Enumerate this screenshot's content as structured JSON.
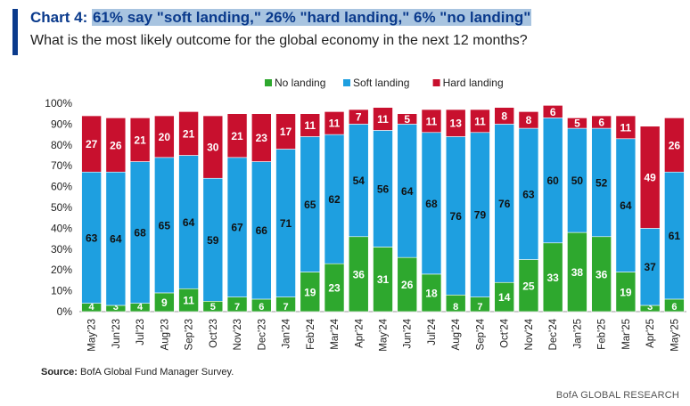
{
  "header": {
    "chart_label": "Chart 4:",
    "title_highlight": "61% say \"soft landing,\" 26% \"hard landing,\" 6% \"no landing\"",
    "subtitle": "What is the most likely outcome for the global economy in the next 12 months?"
  },
  "footer": {
    "source_label": "Source:",
    "source_text": " BofA Global Fund Manager Survey.",
    "brand": "BofA GLOBAL RESEARCH"
  },
  "colors": {
    "no_landing": "#2ea82e",
    "soft_landing": "#1e9fe0",
    "hard_landing": "#c8102e",
    "title": "#0a3a8c"
  },
  "chart_data": {
    "type": "bar",
    "stacked": true,
    "categories": [
      "May'23",
      "Jun'23",
      "Jul'23",
      "Aug'23",
      "Sep'23",
      "Oct'23",
      "Nov'23",
      "Dec'23",
      "Jan'24",
      "Feb'24",
      "Mar'24",
      "Apr'24",
      "May'24",
      "Jun'24",
      "Jul'24",
      "Aug'24",
      "Sep'24",
      "Oct'24",
      "Nov'24",
      "Dec'24",
      "Jan'25",
      "Feb'25",
      "Mar'25",
      "Apr'25",
      "May'25"
    ],
    "series": [
      {
        "name": "No landing",
        "color": "#2ea82e",
        "values": [
          4,
          3,
          4,
          9,
          11,
          5,
          7,
          6,
          7,
          19,
          23,
          36,
          31,
          26,
          18,
          8,
          7,
          14,
          25,
          33,
          38,
          36,
          19,
          3,
          6
        ]
      },
      {
        "name": "Soft landing",
        "color": "#1e9fe0",
        "values": [
          63,
          64,
          68,
          65,
          64,
          59,
          67,
          66,
          71,
          65,
          62,
          54,
          56,
          64,
          68,
          76,
          79,
          76,
          63,
          60,
          50,
          52,
          64,
          37,
          61
        ]
      },
      {
        "name": "Hard landing",
        "color": "#c8102e",
        "values": [
          27,
          26,
          21,
          20,
          21,
          30,
          21,
          23,
          17,
          11,
          11,
          7,
          11,
          5,
          11,
          13,
          11,
          8,
          8,
          6,
          5,
          6,
          11,
          49,
          26
        ]
      }
    ],
    "ylim": [
      0,
      100
    ],
    "yticks": [
      "0%",
      "10%",
      "20%",
      "30%",
      "40%",
      "50%",
      "60%",
      "70%",
      "80%",
      "90%",
      "100%"
    ],
    "legend_position": "top-center",
    "grid": false
  }
}
